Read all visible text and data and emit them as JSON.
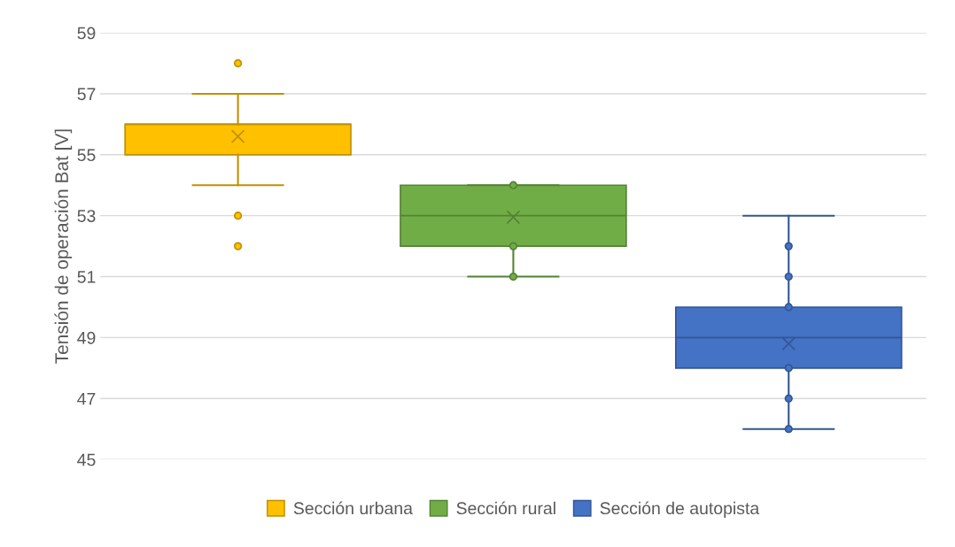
{
  "chart_data": {
    "type": "box",
    "ylabel": "Tensión de operación Bat [V]",
    "categories": [
      null
    ],
    "series": [
      {
        "name": "Sección urbana",
        "color": "#ffc000",
        "boxes": [
          {
            "low": 54,
            "q1": 55,
            "median": 56,
            "q3": 56,
            "high": 57,
            "mean": 55.6,
            "outliers": [
              58,
              53,
              52
            ]
          }
        ]
      },
      {
        "name": "Sección rural",
        "color": "#70ad47",
        "boxes": [
          {
            "low": 51,
            "q1": 52,
            "median": 53,
            "q3": 54,
            "high": 54,
            "mean": 52.95,
            "outliers": [
              54,
              52,
              51
            ]
          }
        ]
      },
      {
        "name": "Sección de autopista",
        "color": "#4472c4",
        "boxes": [
          {
            "low": 46,
            "q1": 48,
            "median": 49,
            "q3": 50,
            "high": 53,
            "mean": 48.8,
            "outliers": [
              52,
              51,
              50,
              48,
              47,
              46
            ]
          }
        ]
      }
    ],
    "ylim": [
      45,
      59
    ],
    "yticks": [
      45,
      47,
      49,
      51,
      53,
      55,
      57,
      59
    ],
    "grid": "y",
    "legend": "bottom",
    "tick_labels": "y",
    "marker": "circle"
  }
}
